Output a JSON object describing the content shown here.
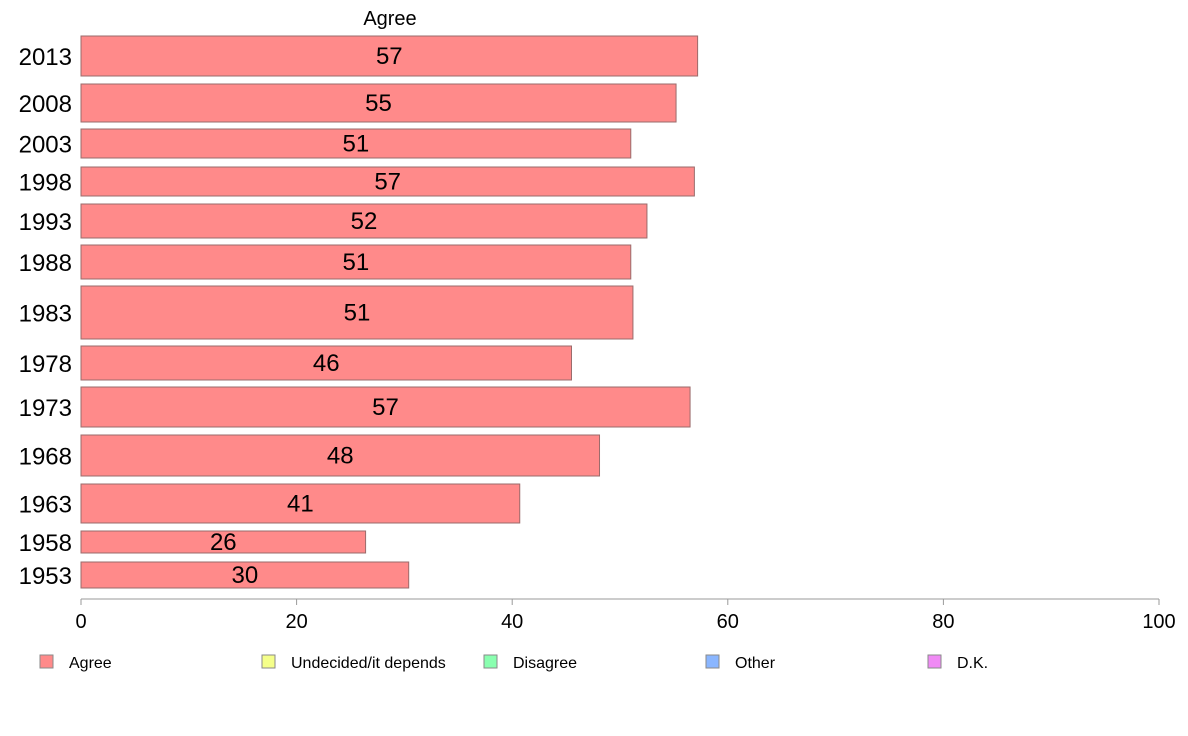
{
  "chart_data": {
    "type": "bar",
    "orientation": "horizontal",
    "series_title": "Agree",
    "categories": [
      "2013",
      "2008",
      "2003",
      "1998",
      "1993",
      "1988",
      "1983",
      "1978",
      "1973",
      "1968",
      "1963",
      "1958",
      "1953"
    ],
    "series": [
      {
        "name": "Agree",
        "color": "#ff8a8a",
        "values": [
          57.2,
          55.2,
          51.0,
          56.9,
          52.5,
          51.0,
          51.2,
          45.5,
          56.5,
          48.1,
          40.7,
          26.4,
          30.4
        ],
        "labels": [
          "57",
          "55",
          "51",
          "57",
          "52",
          "51",
          "51",
          "46",
          "57",
          "48",
          "41",
          "26",
          "30"
        ]
      }
    ],
    "xlim": [
      0,
      100
    ],
    "xticks": [
      0,
      20,
      40,
      60,
      80,
      100
    ],
    "grid": false,
    "legend": {
      "position": "bottom",
      "items": [
        {
          "label": "Agree",
          "color": "#ff8a8a"
        },
        {
          "label": "Undecided/it depends",
          "color": "#f5ff8a"
        },
        {
          "label": "Disagree",
          "color": "#8affb0"
        },
        {
          "label": "Other",
          "color": "#8ab6ff"
        },
        {
          "label": "D.K.",
          "color": "#f08af5"
        }
      ]
    }
  }
}
